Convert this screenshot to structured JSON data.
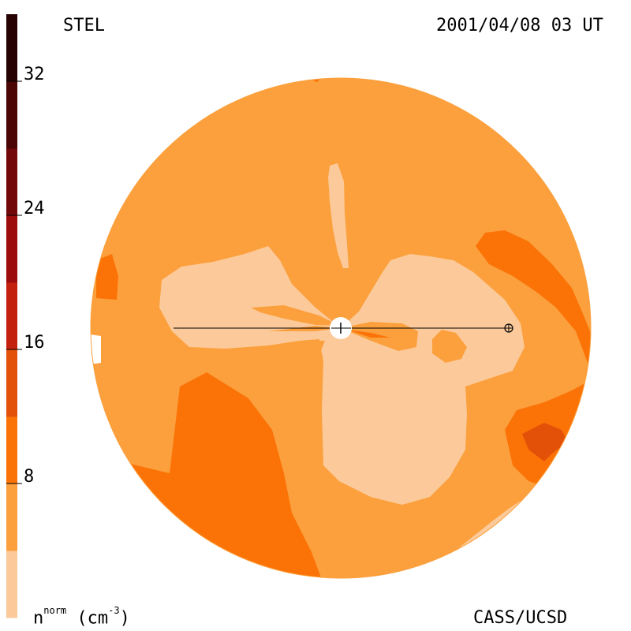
{
  "header": {
    "left_label": "STEL",
    "right_label": "2001/04/08 03 UT"
  },
  "footer": {
    "credit": "CASS/UCSD"
  },
  "colorbar": {
    "label_main": "n",
    "label_sup": "norm",
    "label_units_open": " (cm",
    "label_units_sup": "-3",
    "label_units_close": ")",
    "ticks": [
      "8",
      "16",
      "24",
      "32"
    ],
    "tick_values": [
      8,
      16,
      24,
      32
    ],
    "range": [
      0,
      36
    ],
    "bands": [
      {
        "from": 0,
        "to": 4,
        "color": "#fcca9a"
      },
      {
        "from": 4,
        "to": 8,
        "color": "#fba03d"
      },
      {
        "from": 8,
        "to": 12,
        "color": "#fb7307"
      },
      {
        "from": 12,
        "to": 16,
        "color": "#e35109"
      },
      {
        "from": 16,
        "to": 20,
        "color": "#c4200e"
      },
      {
        "from": 20,
        "to": 24,
        "color": "#9c0c0c"
      },
      {
        "from": 24,
        "to": 28,
        "color": "#72080a"
      },
      {
        "from": 28,
        "to": 32,
        "color": "#4a0505"
      },
      {
        "from": 32,
        "to": 36,
        "color": "#260202"
      }
    ]
  },
  "map": {
    "background_color": "#fba03d",
    "light_color": "#fcca9a",
    "mid_color": "#fb7307",
    "dark_color": "#e35109"
  }
}
